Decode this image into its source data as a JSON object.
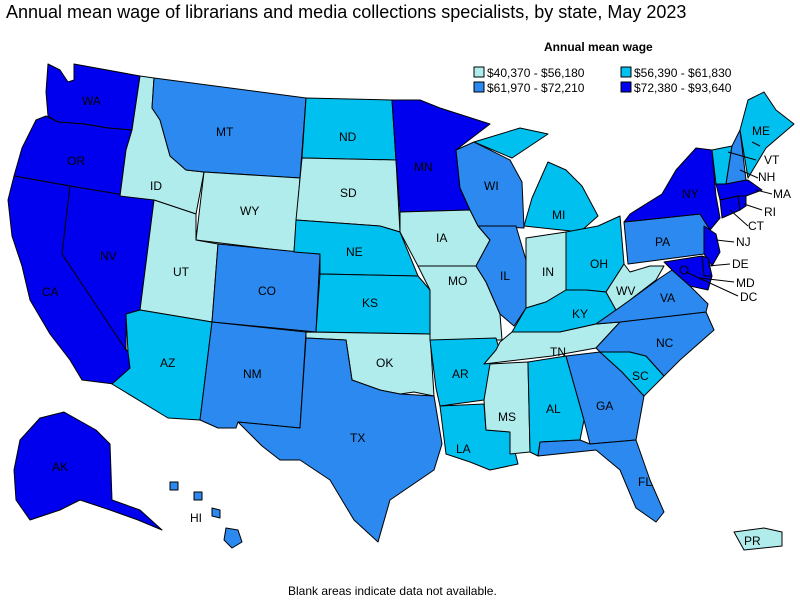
{
  "title": "Annual mean wage of librarians and media collections specialists, by state, May 2023",
  "footnote": "Blank areas indicate data not available.",
  "legend": {
    "title": "Annual mean wage",
    "items": [
      {
        "label": "$40,370 - $56,180",
        "color": "#b0ecec"
      },
      {
        "label": "$56,390 - $61,830",
        "color": "#00c0f0"
      },
      {
        "label": "$61,970 - $72,210",
        "color": "#2b89f0"
      },
      {
        "label": "$72,380 - $93,640",
        "color": "#0000ee"
      }
    ]
  },
  "states": [
    {
      "abbr": "WA",
      "tier": 3
    },
    {
      "abbr": "OR",
      "tier": 3
    },
    {
      "abbr": "CA",
      "tier": 3
    },
    {
      "abbr": "NV",
      "tier": 3
    },
    {
      "abbr": "ID",
      "tier": 0
    },
    {
      "abbr": "MT",
      "tier": 2
    },
    {
      "abbr": "WY",
      "tier": 0
    },
    {
      "abbr": "UT",
      "tier": 0
    },
    {
      "abbr": "AZ",
      "tier": 1
    },
    {
      "abbr": "CO",
      "tier": 2
    },
    {
      "abbr": "NM",
      "tier": 2
    },
    {
      "abbr": "ND",
      "tier": 1
    },
    {
      "abbr": "SD",
      "tier": 0
    },
    {
      "abbr": "NE",
      "tier": 1
    },
    {
      "abbr": "KS",
      "tier": 1
    },
    {
      "abbr": "OK",
      "tier": 0
    },
    {
      "abbr": "TX",
      "tier": 2
    },
    {
      "abbr": "MN",
      "tier": 3
    },
    {
      "abbr": "IA",
      "tier": 0
    },
    {
      "abbr": "MO",
      "tier": 0
    },
    {
      "abbr": "AR",
      "tier": 1
    },
    {
      "abbr": "LA",
      "tier": 1
    },
    {
      "abbr": "WI",
      "tier": 2
    },
    {
      "abbr": "IL",
      "tier": 2
    },
    {
      "abbr": "MI",
      "tier": 1
    },
    {
      "abbr": "IN",
      "tier": 0
    },
    {
      "abbr": "OH",
      "tier": 1
    },
    {
      "abbr": "KY",
      "tier": 1
    },
    {
      "abbr": "TN",
      "tier": 0
    },
    {
      "abbr": "MS",
      "tier": 0
    },
    {
      "abbr": "AL",
      "tier": 1
    },
    {
      "abbr": "GA",
      "tier": 2
    },
    {
      "abbr": "FL",
      "tier": 2
    },
    {
      "abbr": "SC",
      "tier": 1
    },
    {
      "abbr": "NC",
      "tier": 2
    },
    {
      "abbr": "VA",
      "tier": 2
    },
    {
      "abbr": "WV",
      "tier": 0
    },
    {
      "abbr": "PA",
      "tier": 2
    },
    {
      "abbr": "NY",
      "tier": 3
    },
    {
      "abbr": "NJ",
      "tier": 3
    },
    {
      "abbr": "DE",
      "tier": 3
    },
    {
      "abbr": "MD",
      "tier": 3
    },
    {
      "abbr": "DC",
      "tier": 3
    },
    {
      "abbr": "CT",
      "tier": 3
    },
    {
      "abbr": "RI",
      "tier": 3
    },
    {
      "abbr": "MA",
      "tier": 3
    },
    {
      "abbr": "VT",
      "tier": 1
    },
    {
      "abbr": "NH",
      "tier": 2
    },
    {
      "abbr": "ME",
      "tier": 1
    },
    {
      "abbr": "AK",
      "tier": 3
    },
    {
      "abbr": "HI",
      "tier": 2
    },
    {
      "abbr": "PR",
      "tier": 0
    }
  ]
}
